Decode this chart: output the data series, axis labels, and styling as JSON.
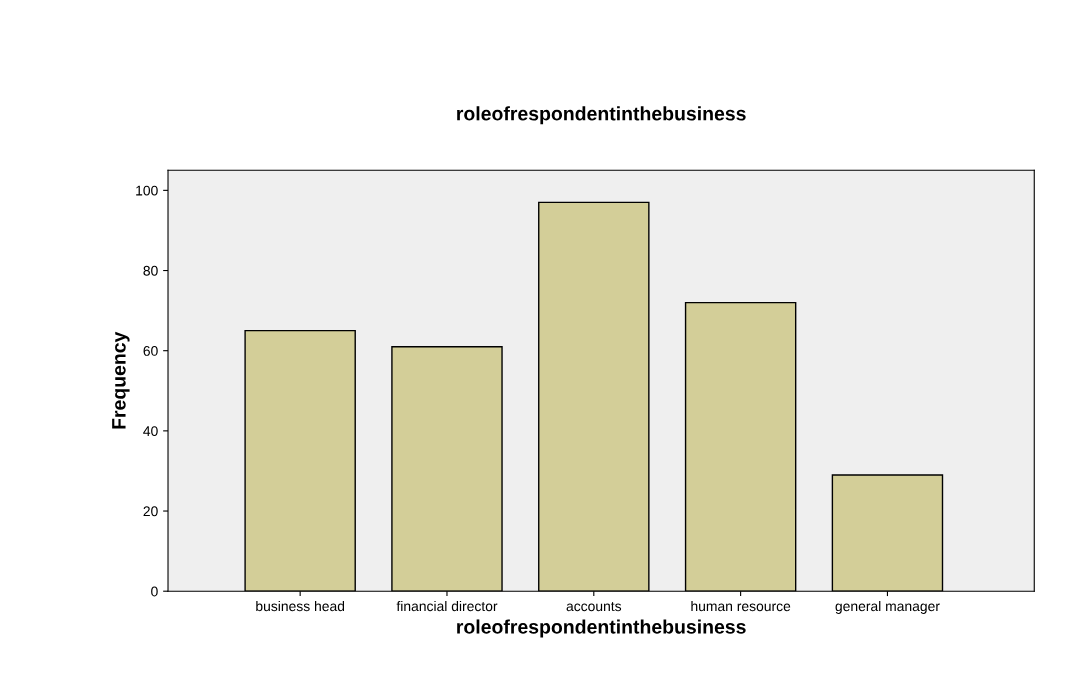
{
  "chart_data": {
    "type": "bar",
    "title": "roleofrespondentinthebusiness",
    "xlabel": "roleofrespondentinthebusiness",
    "ylabel": "Frequency",
    "categories": [
      "business head",
      "financial director",
      "accounts",
      "human resource",
      "general manager"
    ],
    "values": [
      65,
      61,
      97,
      72,
      29
    ],
    "color": "#d3ce98",
    "ylim": [
      0,
      105
    ],
    "yticks": [
      0,
      20,
      40,
      60,
      80,
      100
    ],
    "grid": false
  }
}
